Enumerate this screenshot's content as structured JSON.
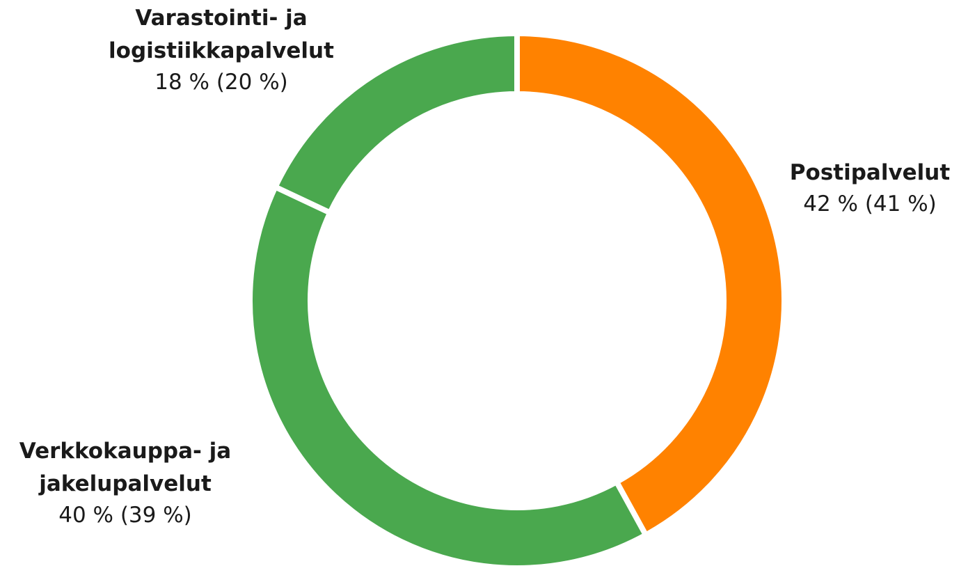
{
  "chart_data": {
    "type": "donut",
    "categories": [
      "Postipalvelut",
      "Verkkokauppa- ja\njakelupalvelut",
      "Varastointi- ja\nlogistiikkapalvelut"
    ],
    "values": [
      42,
      40,
      18
    ],
    "value_labels": [
      "42 % (41 %)",
      "40 % (39 %)",
      "18 % (20 %)"
    ],
    "colors": [
      "#ff8200",
      "#4aa84e",
      "#4aa84e"
    ]
  }
}
